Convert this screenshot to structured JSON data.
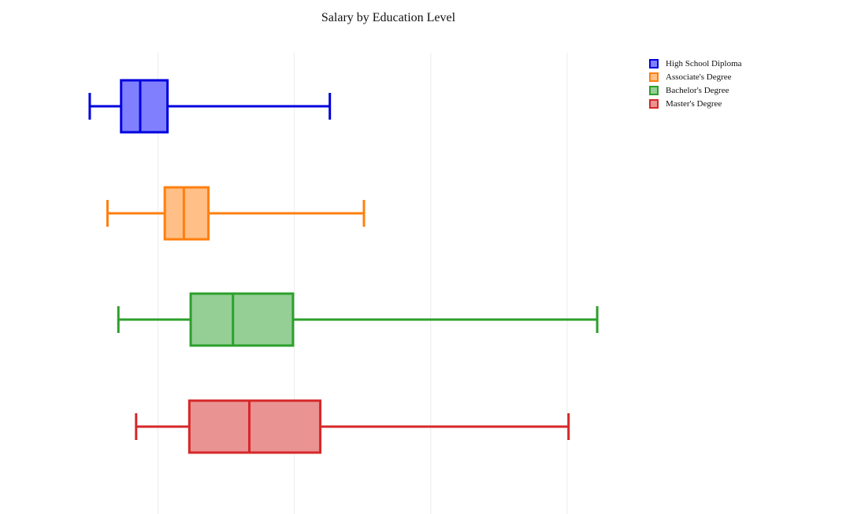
{
  "chart_data": {
    "type": "box",
    "title": "Salary by Education Level",
    "xlabel": "",
    "ylabel": "",
    "orientation": "horizontal",
    "x_axis_range": [
      25000,
      202000
    ],
    "x_gridlines_at": [
      50000,
      100000,
      150000,
      200000
    ],
    "grid": true,
    "x_tick_labels_visible": false,
    "legend_position": "top-right",
    "series": [
      {
        "name": "High School Diploma",
        "color": "#0000dd",
        "fill": "#8080ff",
        "min": 25000,
        "q1": 36500,
        "median": 43500,
        "q3": 53500,
        "max": 113000
      },
      {
        "name": "Associate's Degree",
        "color": "#ff7f0e",
        "fill": "#ffbf86",
        "min": 31500,
        "q1": 52500,
        "median": 59500,
        "q3": 68500,
        "max": 125500
      },
      {
        "name": "Bachelor's Degree",
        "color": "#2ca02c",
        "fill": "#95cf95",
        "min": 35500,
        "q1": 62000,
        "median": 77500,
        "q3": 99500,
        "max": 211000
      },
      {
        "name": "Master's Degree",
        "color": "#d62728",
        "fill": "#ea9393",
        "min": 42000,
        "q1": 61500,
        "median": 83500,
        "q3": 109500,
        "max": 200500
      }
    ]
  }
}
